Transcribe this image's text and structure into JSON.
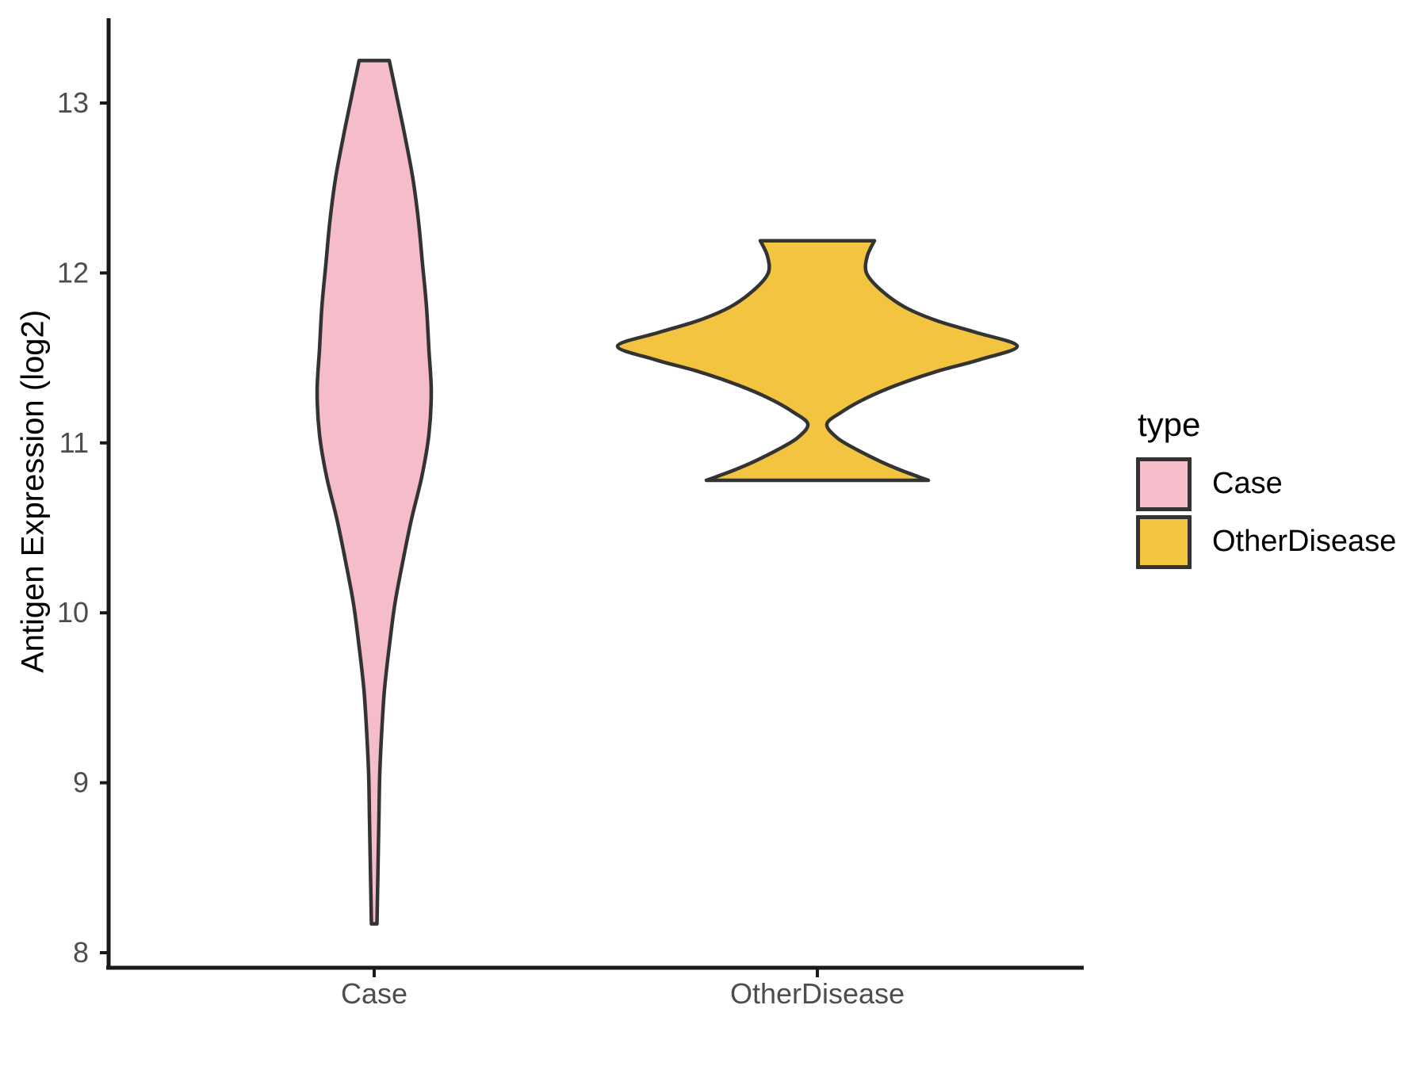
{
  "chart_data": {
    "type": "violin",
    "title": "",
    "xlabel": "",
    "ylabel": "Antigen Expression (log2)",
    "categories": [
      "Case",
      "OtherDisease"
    ],
    "y_ticks": [
      "8",
      "9",
      "10",
      "11",
      "12",
      "13"
    ],
    "y_tick_values": [
      8,
      9,
      10,
      11,
      12,
      13
    ],
    "ylim": [
      7.95,
      13.5
    ],
    "grid": "off",
    "legend": {
      "title": "type",
      "position": "right",
      "entries": [
        {
          "label": "Case",
          "color": "#F5BCCA"
        },
        {
          "label": "OtherDisease",
          "color": "#F2C440"
        }
      ]
    },
    "colors": {
      "violin_outline": "#333333",
      "axis_line": "#1a1a1a",
      "tick_label": "#4d4d4d",
      "axis_title": "#000000"
    },
    "series": [
      {
        "name": "Case",
        "fill": "#F5BCCA",
        "y_min": 8.17,
        "y_max": 13.25,
        "peak_at": 11.3,
        "profile_units": "[expression_value, half_width_px]",
        "profile": [
          [
            13.25,
            19
          ],
          [
            13.05,
            28
          ],
          [
            12.8,
            39
          ],
          [
            12.55,
            49
          ],
          [
            12.3,
            56
          ],
          [
            12.05,
            61
          ],
          [
            11.8,
            66
          ],
          [
            11.55,
            69
          ],
          [
            11.3,
            72
          ],
          [
            11.05,
            69
          ],
          [
            10.8,
            60
          ],
          [
            10.55,
            47
          ],
          [
            10.3,
            36
          ],
          [
            10.05,
            26
          ],
          [
            9.8,
            19
          ],
          [
            9.55,
            13
          ],
          [
            9.3,
            9.5
          ],
          [
            9.05,
            7
          ],
          [
            8.8,
            6
          ],
          [
            8.55,
            5
          ],
          [
            8.3,
            4
          ],
          [
            8.17,
            3.5
          ]
        ]
      },
      {
        "name": "OtherDisease",
        "fill": "#F2C440",
        "y_min": 10.78,
        "y_max": 12.19,
        "peak_at": 11.57,
        "profile_units": "[expression_value, half_width_px]",
        "profile": [
          [
            12.19,
            72
          ],
          [
            12.1,
            63
          ],
          [
            12.0,
            62
          ],
          [
            11.9,
            80
          ],
          [
            11.8,
            110
          ],
          [
            11.72,
            150
          ],
          [
            11.65,
            200
          ],
          [
            11.57,
            252
          ],
          [
            11.49,
            205
          ],
          [
            11.42,
            150
          ],
          [
            11.34,
            100
          ],
          [
            11.26,
            60
          ],
          [
            11.18,
            30
          ],
          [
            11.11,
            12
          ],
          [
            11.03,
            25
          ],
          [
            10.96,
            50
          ],
          [
            10.89,
            80
          ],
          [
            10.84,
            105
          ],
          [
            10.8,
            128
          ],
          [
            10.78,
            140
          ]
        ]
      }
    ]
  }
}
